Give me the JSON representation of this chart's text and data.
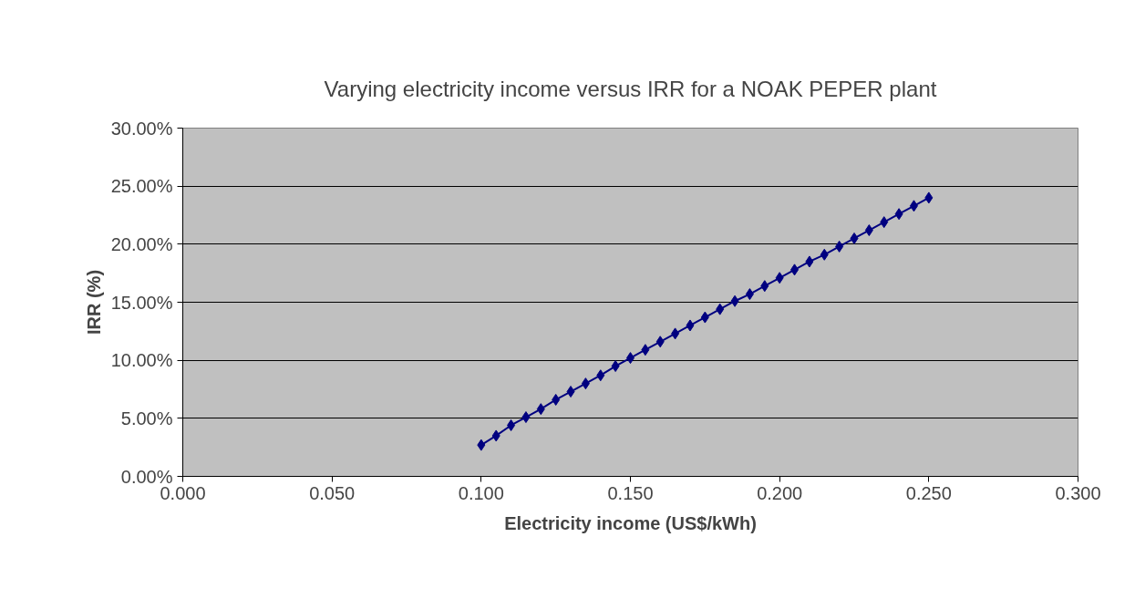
{
  "chart_data": {
    "type": "line",
    "title": "Varying electricity income versus IRR for a NOAK PEPER plant",
    "xlabel": "Electricity income (US$/kWh)",
    "ylabel": "IRR (%)",
    "x": [
      0.1,
      0.105,
      0.11,
      0.115,
      0.12,
      0.125,
      0.13,
      0.135,
      0.14,
      0.145,
      0.15,
      0.155,
      0.16,
      0.165,
      0.17,
      0.175,
      0.18,
      0.185,
      0.19,
      0.195,
      0.2,
      0.205,
      0.21,
      0.215,
      0.22,
      0.225,
      0.23,
      0.235,
      0.24,
      0.245,
      0.25
    ],
    "series": [
      {
        "color": "#000080",
        "line_style": "solid",
        "marker": "diamond",
        "values": [
          2.7,
          3.5,
          4.4,
          5.1,
          5.8,
          6.6,
          7.3,
          8.0,
          8.7,
          9.5,
          10.2,
          10.9,
          11.6,
          12.3,
          13.0,
          13.7,
          14.4,
          15.1,
          15.7,
          16.4,
          17.1,
          17.8,
          18.5,
          19.1,
          19.8,
          20.5,
          21.2,
          21.9,
          22.6,
          23.3,
          24.0
        ]
      }
    ],
    "xlim": [
      0,
      0.3
    ],
    "ylim": [
      0,
      30
    ],
    "xticks": [
      {
        "value": 0,
        "label": "0.000"
      },
      {
        "value": 0.05,
        "label": "0.050"
      },
      {
        "value": 0.1,
        "label": "0.100"
      },
      {
        "value": 0.15,
        "label": "0.150"
      },
      {
        "value": 0.2,
        "label": "0.200"
      },
      {
        "value": 0.25,
        "label": "0.250"
      },
      {
        "value": 0.3,
        "label": "0.300"
      }
    ],
    "yticks": [
      {
        "value": 0,
        "label": "0.00%"
      },
      {
        "value": 5,
        "label": "5.00%"
      },
      {
        "value": 10,
        "label": "10.00%"
      },
      {
        "value": 15,
        "label": "15.00%"
      },
      {
        "value": 20,
        "label": "20.00%"
      },
      {
        "value": 25,
        "label": "25.00%"
      },
      {
        "value": 30,
        "label": "30.00%"
      }
    ],
    "grid": "y"
  }
}
